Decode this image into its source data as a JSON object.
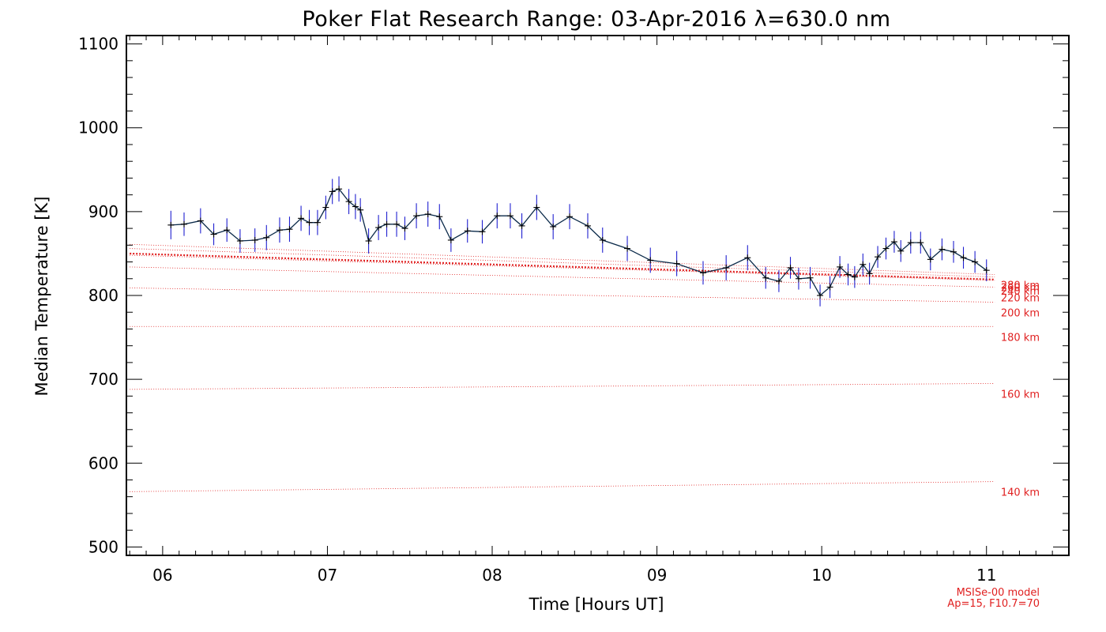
{
  "chart_data": {
    "type": "line",
    "title": "Poker Flat Research Range: 03-Apr-2016 λ=630.0 nm",
    "xlabel": "Time [Hours UT]",
    "ylabel": "Median Temperature [K]",
    "xlim": [
      5.78,
      11.5
    ],
    "ylim": [
      490,
      1110
    ],
    "x_tick_values": [
      6,
      7,
      8,
      9,
      10,
      11
    ],
    "x_tick_labels": [
      "06",
      "07",
      "08",
      "09",
      "10",
      "11"
    ],
    "y_tick_values": [
      500,
      600,
      700,
      800,
      900,
      1000,
      1100
    ],
    "y_tick_labels": [
      "500",
      "600",
      "700",
      "800",
      "900",
      "1000",
      "1100"
    ],
    "series": [
      {
        "name": "Median Temperature",
        "color": "#0b2a4a",
        "error_color": "#2020d0",
        "x": [
          6.05,
          6.13,
          6.23,
          6.31,
          6.39,
          6.47,
          6.56,
          6.63,
          6.71,
          6.77,
          6.84,
          6.89,
          6.94,
          6.99,
          7.03,
          7.07,
          7.13,
          7.17,
          7.2,
          7.25,
          7.31,
          7.36,
          7.42,
          7.47,
          7.54,
          7.61,
          7.68,
          7.75,
          7.85,
          7.94,
          8.03,
          8.11,
          8.18,
          8.27,
          8.37,
          8.47,
          8.58,
          8.67,
          8.82,
          8.96,
          9.12,
          9.28,
          9.42,
          9.55,
          9.66,
          9.74,
          9.81,
          9.86,
          9.93,
          9.99,
          10.05,
          10.11,
          10.16,
          10.2,
          10.25,
          10.29,
          10.34,
          10.39,
          10.44,
          10.48,
          10.54,
          10.6,
          10.66,
          10.73,
          10.8,
          10.86,
          10.93,
          11.0
        ],
        "y": [
          884,
          885,
          889,
          873,
          878,
          865,
          866,
          869,
          878,
          879,
          892,
          887,
          887,
          905,
          924,
          927,
          912,
          906,
          902,
          865,
          881,
          885,
          885,
          880,
          895,
          897,
          894,
          866,
          877,
          876,
          895,
          895,
          883,
          905,
          882,
          894,
          883,
          866,
          856,
          842,
          838,
          827,
          833,
          845,
          821,
          817,
          833,
          820,
          821,
          800,
          810,
          834,
          825,
          822,
          837,
          826,
          846,
          856,
          864,
          853,
          863,
          863,
          843,
          855,
          852,
          845,
          840,
          830
        ],
        "yerr": [
          17,
          14,
          15,
          13,
          14,
          14,
          14,
          15,
          15,
          15,
          15,
          15,
          15,
          14,
          15,
          15,
          15,
          15,
          14,
          15,
          15,
          15,
          15,
          14,
          15,
          15,
          15,
          14,
          14,
          14,
          15,
          15,
          15,
          15,
          15,
          15,
          15,
          15,
          15,
          15,
          15,
          14,
          15,
          15,
          13,
          13,
          13,
          13,
          13,
          13,
          13,
          13,
          13,
          13,
          13,
          13,
          13,
          13,
          13,
          13,
          13,
          13,
          13,
          13,
          13,
          13,
          13,
          13
        ]
      }
    ],
    "model_lines": [
      {
        "label": "140 km",
        "y_start": 566,
        "y_end": 578
      },
      {
        "label": "160 km",
        "y_start": 688,
        "y_end": 695
      },
      {
        "label": "180 km",
        "y_start": 763,
        "y_end": 763
      },
      {
        "label": "200 km",
        "y_start": 809,
        "y_end": 792
      },
      {
        "label": "220 km",
        "y_start": 834,
        "y_end": 810
      },
      {
        "label": "240 km",
        "y_start": 848,
        "y_end": 818
      },
      {
        "label": "260 km",
        "y_start": 856,
        "y_end": 822
      },
      {
        "label": "280 km",
        "y_start": 861,
        "y_end": 825
      }
    ],
    "model_emphasis": {
      "y_start": 850,
      "y_end": 819
    },
    "model_line_x_range": [
      5.8,
      11.05
    ],
    "annotation": {
      "line1": "MSISe-00 model",
      "line2": "Ap=15, F10.7=70"
    },
    "grid": false
  }
}
